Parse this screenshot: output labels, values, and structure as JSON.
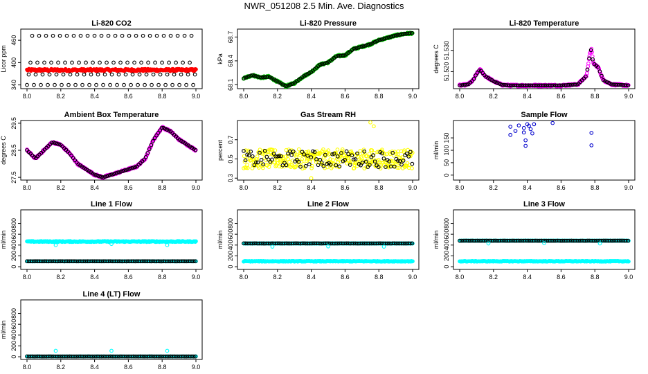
{
  "page_title": "NWR_051208  2.5 Min. Ave. Diagnostics",
  "colors": {
    "black": "#000000",
    "red": "#ff0000",
    "green": "#00cc00",
    "magenta": "#ff00ff",
    "yellow": "#ffff00",
    "blue": "#0000cc",
    "cyan": "#00ffff"
  },
  "chart_data": [
    {
      "id": "li820-co2",
      "type": "scatter",
      "title": "Li-820 CO2",
      "ylabel": "Licor ppm",
      "xlim": [
        8.0,
        9.0
      ],
      "ylim": [
        330,
        490
      ],
      "xticks": [
        "8.0",
        "8.2",
        "8.4",
        "8.6",
        "8.8",
        "9.0"
      ],
      "yticks": [
        "340",
        "400",
        "460"
      ],
      "series": [
        {
          "name": "co2",
          "color": "#ff0000",
          "style": "band",
          "constant": 380,
          "spread": 3
        },
        {
          "name": "reference",
          "color": "#000000",
          "style": "cycle",
          "levels": [
            340,
            368,
            400,
            472
          ],
          "period": 0.041
        }
      ]
    },
    {
      "id": "li820-pressure",
      "type": "scatter",
      "title": "Li-820 Pressure",
      "ylabel": "kPa",
      "xlim": [
        8.0,
        9.0
      ],
      "ylim": [
        68.05,
        68.8
      ],
      "xticks": [
        "8.0",
        "8.2",
        "8.4",
        "8.6",
        "8.8",
        "9.0"
      ],
      "yticks": [
        "68.1",
        "68.4",
        "68.7"
      ],
      "series": [
        {
          "name": "pressure",
          "color": "#00cc00",
          "black_overlay": true,
          "curve": [
            [
              8.0,
              68.18
            ],
            [
              8.05,
              68.22
            ],
            [
              8.1,
              68.19
            ],
            [
              8.15,
              68.2
            ],
            [
              8.2,
              68.14
            ],
            [
              8.25,
              68.08
            ],
            [
              8.3,
              68.12
            ],
            [
              8.35,
              68.2
            ],
            [
              8.4,
              68.26
            ],
            [
              8.45,
              68.35
            ],
            [
              8.5,
              68.38
            ],
            [
              8.55,
              68.46
            ],
            [
              8.6,
              68.47
            ],
            [
              8.65,
              68.55
            ],
            [
              8.7,
              68.58
            ],
            [
              8.75,
              68.61
            ],
            [
              8.8,
              68.66
            ],
            [
              8.85,
              68.69
            ],
            [
              8.9,
              68.72
            ],
            [
              8.95,
              68.74
            ],
            [
              9.0,
              68.75
            ]
          ]
        }
      ]
    },
    {
      "id": "li820-temperature",
      "type": "scatter",
      "title": "Li-820 Temperature",
      "ylabel": "degrees C",
      "xlim": [
        8.0,
        9.0
      ],
      "ylim": [
        51.512,
        51.54
      ],
      "xticks": [
        "8.0",
        "8.2",
        "8.4",
        "8.6",
        "8.8",
        "9.0"
      ],
      "yticks": [
        "51.520",
        "51.530"
      ],
      "series": [
        {
          "name": "temperature",
          "color": "#ff00ff",
          "black_overlay": true,
          "curve": [
            [
              8.0,
              51.5135
            ],
            [
              8.05,
              51.514
            ],
            [
              8.08,
              51.516
            ],
            [
              8.1,
              51.519
            ],
            [
              8.12,
              51.521
            ],
            [
              8.15,
              51.518
            ],
            [
              8.2,
              51.5155
            ],
            [
              8.25,
              51.5138
            ],
            [
              8.3,
              51.5135
            ],
            [
              8.6,
              51.5135
            ],
            [
              8.7,
              51.514
            ],
            [
              8.75,
              51.518
            ],
            [
              8.77,
              51.528
            ],
            [
              8.78,
              51.531
            ],
            [
              8.79,
              51.524
            ],
            [
              8.82,
              51.522
            ],
            [
              8.85,
              51.516
            ],
            [
              8.9,
              51.514
            ],
            [
              9.0,
              51.5135
            ]
          ]
        }
      ]
    },
    {
      "id": "ambient-box-temperature",
      "type": "scatter",
      "title": "Ambient Box Temperature",
      "ylabel": "degrees C",
      "xlim": [
        8.0,
        9.0
      ],
      "ylim": [
        27.4,
        29.6
      ],
      "xticks": [
        "8.0",
        "8.2",
        "8.4",
        "8.6",
        "8.8",
        "9.0"
      ],
      "yticks": [
        "27.5",
        "28.5",
        "29.5"
      ],
      "series": [
        {
          "name": "box_temp",
          "color": "#ff00ff",
          "black_overlay": true,
          "curve": [
            [
              8.0,
              28.5
            ],
            [
              8.05,
              28.2
            ],
            [
              8.1,
              28.5
            ],
            [
              8.15,
              28.8
            ],
            [
              8.2,
              28.7
            ],
            [
              8.25,
              28.4
            ],
            [
              8.3,
              28.0
            ],
            [
              8.35,
              27.8
            ],
            [
              8.4,
              27.6
            ],
            [
              8.45,
              27.5
            ],
            [
              8.5,
              27.6
            ],
            [
              8.55,
              27.7
            ],
            [
              8.6,
              27.8
            ],
            [
              8.65,
              27.9
            ],
            [
              8.7,
              28.2
            ],
            [
              8.75,
              28.9
            ],
            [
              8.8,
              29.35
            ],
            [
              8.85,
              29.2
            ],
            [
              8.9,
              28.9
            ],
            [
              8.95,
              28.7
            ],
            [
              9.0,
              28.5
            ]
          ]
        }
      ]
    },
    {
      "id": "gas-stream-rh",
      "type": "scatter",
      "title": "Gas Stream RH",
      "ylabel": "percent",
      "xlim": [
        8.0,
        9.0
      ],
      "ylim": [
        0.28,
        0.9
      ],
      "xticks": [
        "8.0",
        "8.2",
        "8.4",
        "8.6",
        "8.8",
        "9.0"
      ],
      "yticks": [
        "0.3",
        "0.5",
        "0.7"
      ],
      "series": [
        {
          "name": "rh",
          "color": "#ffff00",
          "black_overlay": true,
          "style": "noise",
          "constant": 0.5,
          "spread": 0.1,
          "outliers": [
            [
              8.75,
              0.88
            ],
            [
              8.77,
              0.84
            ],
            [
              8.4,
              0.3
            ]
          ]
        }
      ]
    },
    {
      "id": "sample-flow",
      "type": "scatter",
      "title": "Sample Flow",
      "ylabel": "ml/min",
      "xlim": [
        8.0,
        9.0
      ],
      "ylim": [
        -20,
        220
      ],
      "xticks": [
        "8.0",
        "8.2",
        "8.4",
        "8.6",
        "8.8",
        "9.0"
      ],
      "yticks": [
        "0",
        "50",
        "100",
        "150"
      ],
      "series": [
        {
          "name": "sample_flow",
          "color": "#0000cc",
          "style": "points",
          "points": [
            [
              8.3,
              195
            ],
            [
              8.3,
              162
            ],
            [
              8.33,
              178
            ],
            [
              8.35,
              200
            ],
            [
              8.38,
              190
            ],
            [
              8.38,
              172
            ],
            [
              8.39,
              140
            ],
            [
              8.39,
              118
            ],
            [
              8.4,
              205
            ],
            [
              8.41,
              198
            ],
            [
              8.42,
              185
            ],
            [
              8.43,
              168
            ],
            [
              8.44,
              205
            ],
            [
              8.55,
              210
            ],
            [
              8.78,
              170
            ],
            [
              8.78,
              120
            ]
          ]
        }
      ]
    },
    {
      "id": "line1-flow",
      "type": "scatter",
      "title": "Line 1 Flow",
      "ylabel": "ml/min",
      "xlim": [
        8.0,
        9.0
      ],
      "ylim": [
        -50,
        1050
      ],
      "xticks": [
        "8.0",
        "8.2",
        "8.4",
        "8.6",
        "8.8",
        "9.0"
      ],
      "yticks": [
        "0",
        "200",
        "400",
        "600",
        "800"
      ],
      "series": [
        {
          "name": "line1_high",
          "color": "#00ffff",
          "style": "band",
          "constant": 465,
          "spread": 8,
          "outliers": [
            [
              8.17,
              400
            ],
            [
              8.5,
              420
            ],
            [
              8.83,
              400
            ]
          ]
        },
        {
          "name": "line1_low",
          "color": "#000000",
          "style": "dense_ring",
          "constant": 100,
          "spread": 2,
          "fill": "#00ffff"
        }
      ]
    },
    {
      "id": "line2-flow",
      "type": "scatter",
      "title": "Line 2 Flow",
      "ylabel": "ml/min",
      "xlim": [
        8.0,
        9.0
      ],
      "ylim": [
        -50,
        1050
      ],
      "xticks": [
        "8.0",
        "8.2",
        "8.4",
        "8.6",
        "8.8",
        "9.0"
      ],
      "yticks": [
        "0",
        "200",
        "400",
        "600",
        "800"
      ],
      "series": [
        {
          "name": "line2_high",
          "color": "#000000",
          "style": "dense_ring",
          "constant": 430,
          "spread": 3,
          "fill": "#00ffff",
          "outliers": [
            [
              8.17,
              370
            ],
            [
              8.5,
              375
            ],
            [
              8.83,
              370
            ]
          ]
        },
        {
          "name": "line2_low",
          "color": "#00ffff",
          "style": "band",
          "constant": 100,
          "spread": 6
        }
      ]
    },
    {
      "id": "line3-flow",
      "type": "scatter",
      "title": "Line 3 Flow",
      "ylabel": "ml/min",
      "xlim": [
        8.0,
        9.0
      ],
      "ylim": [
        -50,
        1050
      ],
      "xticks": [
        "8.0",
        "8.2",
        "8.4",
        "8.6",
        "8.8",
        "9.0"
      ],
      "yticks": [
        "0",
        "200",
        "400",
        "600",
        "800"
      ],
      "series": [
        {
          "name": "line3_high",
          "color": "#000000",
          "style": "dense_ring",
          "constant": 480,
          "spread": 3,
          "fill": "#00ffff",
          "outliers": [
            [
              8.17,
              430
            ],
            [
              8.5,
              435
            ],
            [
              8.83,
              430
            ]
          ]
        },
        {
          "name": "line3_low",
          "color": "#00ffff",
          "style": "band",
          "constant": 100,
          "spread": 6
        }
      ]
    },
    {
      "id": "line4-flow",
      "type": "scatter",
      "title": "Line 4 (LT) Flow",
      "ylabel": "ml/min",
      "xlim": [
        8.0,
        9.0
      ],
      "ylim": [
        -50,
        1050
      ],
      "xticks": [
        "8.0",
        "8.2",
        "8.4",
        "8.6",
        "8.8",
        "9.0"
      ],
      "yticks": [
        "0",
        "200",
        "400",
        "600",
        "800"
      ],
      "series": [
        {
          "name": "line4_flow",
          "color": "#000000",
          "style": "dense_ring",
          "constant": 5,
          "spread": 2,
          "fill": "#00ffff",
          "outliers": [
            [
              8.17,
              110
            ],
            [
              8.5,
              110
            ],
            [
              8.83,
              110
            ]
          ]
        }
      ]
    }
  ]
}
